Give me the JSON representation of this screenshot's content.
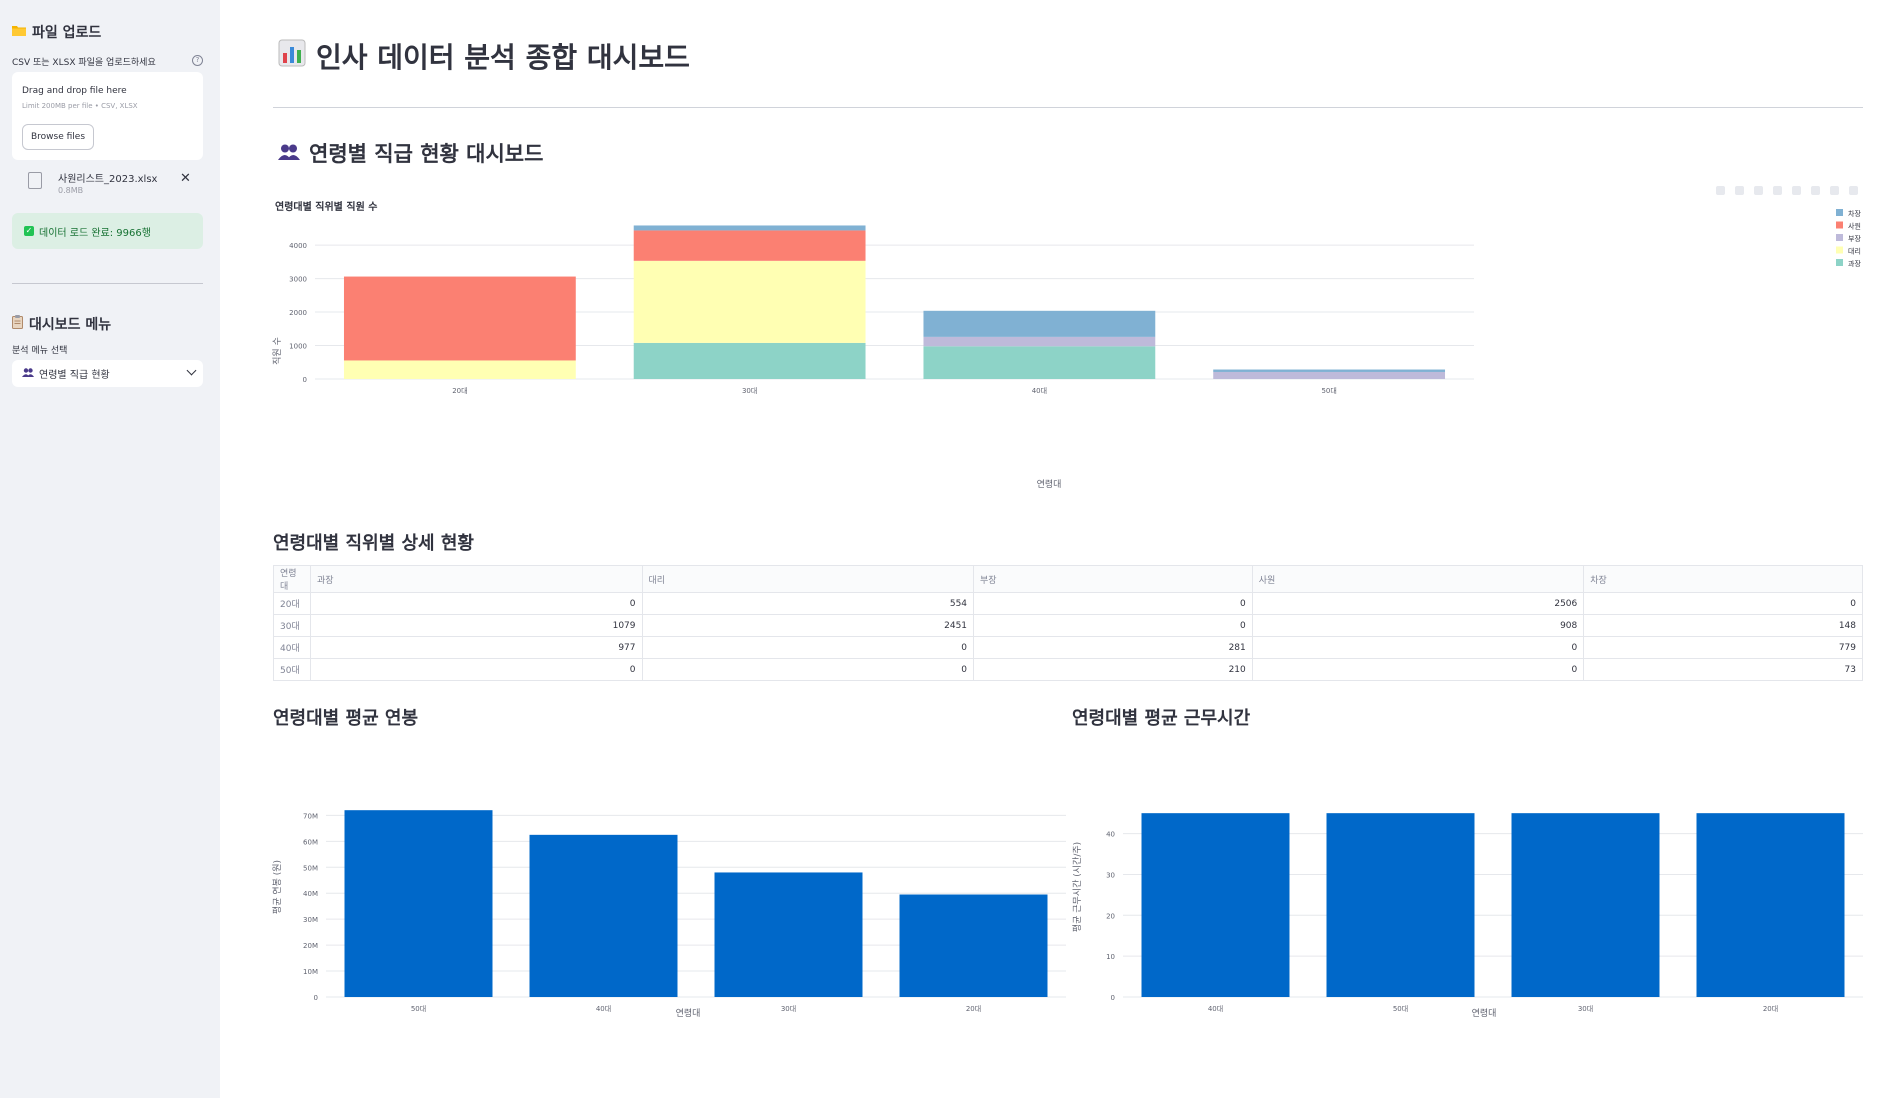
{
  "sidebar": {
    "upload_header": "파일 업로드",
    "upload_label": "CSV 또는 XLSX 파일을 업로드하세요",
    "help_icon": "?",
    "dropzone_title": "Drag and drop file here",
    "dropzone_limit": "Limit 200MB per file • CSV, XLSX",
    "browse_button": "Browse files",
    "file_name": "사원리스트_2023.xlsx",
    "file_size": "0.8MB",
    "success_text": "데이터 로드 완료: 9966행",
    "menu_header": "대시보드 메뉴",
    "menu_label": "분석 메뉴 선택",
    "menu_selected": "연령별 직급 현황"
  },
  "main": {
    "title": "인사 데이터 분석 종합 대시보드",
    "section_title": "연령별 직급 현황 대시보드",
    "table_title": "연령대별 직위별 상세 현황",
    "salary_title": "연령대별 평균 연봉",
    "hours_title": "연령대별 평균 근무시간"
  },
  "colors": {
    "sidebar_bg": "#f0f2f6",
    "bar_blue": "#0068c9",
    "success_bg": "#dcefe4",
    "success_text": "#177233"
  },
  "icons": [
    "folder-icon",
    "help-icon",
    "file-icon",
    "close-icon",
    "check-icon",
    "clipboard-icon",
    "people-icon",
    "chevron-down-icon",
    "bar-chart-icon"
  ],
  "table": {
    "index_header": "연령대",
    "columns": [
      "과장",
      "대리",
      "부장",
      "사원",
      "차장"
    ],
    "rows": [
      {
        "label": "20대",
        "values": [
          "0",
          "554",
          "0",
          "2506",
          "0"
        ]
      },
      {
        "label": "30대",
        "values": [
          "1079",
          "2451",
          "0",
          "908",
          "148"
        ]
      },
      {
        "label": "40대",
        "values": [
          "977",
          "0",
          "281",
          "0",
          "779"
        ]
      },
      {
        "label": "50대",
        "values": [
          "0",
          "0",
          "210",
          "0",
          "73"
        ]
      }
    ]
  },
  "chart_data": [
    {
      "type": "bar",
      "stacked": true,
      "title": "연령대별 직위별 직원 수",
      "xlabel": "연령대",
      "ylabel": "직원 수",
      "categories": [
        "20대",
        "30대",
        "40대",
        "50대"
      ],
      "ylim": [
        0,
        4600
      ],
      "yticks": [
        0,
        1000,
        2000,
        3000,
        4000
      ],
      "legend_position": "right",
      "series": [
        {
          "name": "과장",
          "color": "#8dd3c7",
          "values": [
            0,
            1079,
            977,
            0
          ]
        },
        {
          "name": "대리",
          "color": "#ffffb3",
          "values": [
            554,
            2451,
            0,
            0
          ]
        },
        {
          "name": "부장",
          "color": "#bebada",
          "values": [
            0,
            0,
            281,
            210
          ]
        },
        {
          "name": "사원",
          "color": "#fb8072",
          "values": [
            2506,
            908,
            0,
            0
          ]
        },
        {
          "name": "차장",
          "color": "#80b1d3",
          "values": [
            0,
            148,
            779,
            73
          ]
        }
      ],
      "legend_order": [
        "차장",
        "사원",
        "부장",
        "대리",
        "과장"
      ]
    },
    {
      "type": "bar",
      "title": "",
      "xlabel": "연령대",
      "ylabel": "평균 연봉 (원)",
      "categories": [
        "50대",
        "40대",
        "30대",
        "20대"
      ],
      "values": [
        72000000,
        62500000,
        48000000,
        39500000
      ],
      "ylim": [
        0,
        74000000
      ],
      "yticks": [
        0,
        10000000,
        20000000,
        30000000,
        40000000,
        50000000,
        60000000,
        70000000
      ],
      "ytick_labels": [
        "0",
        "10M",
        "20M",
        "30M",
        "40M",
        "50M",
        "60M",
        "70M"
      ],
      "color": "#0068c9"
    },
    {
      "type": "bar",
      "title": "",
      "xlabel": "연령대",
      "ylabel": "평균 근무시간 (시간/주)",
      "categories": [
        "40대",
        "50대",
        "30대",
        "20대"
      ],
      "values": [
        45,
        45,
        45,
        45
      ],
      "ylim": [
        0,
        47
      ],
      "yticks": [
        0,
        10,
        20,
        30,
        40
      ],
      "ytick_labels": [
        "0",
        "10",
        "20",
        "30",
        "40"
      ],
      "color": "#0068c9"
    }
  ]
}
